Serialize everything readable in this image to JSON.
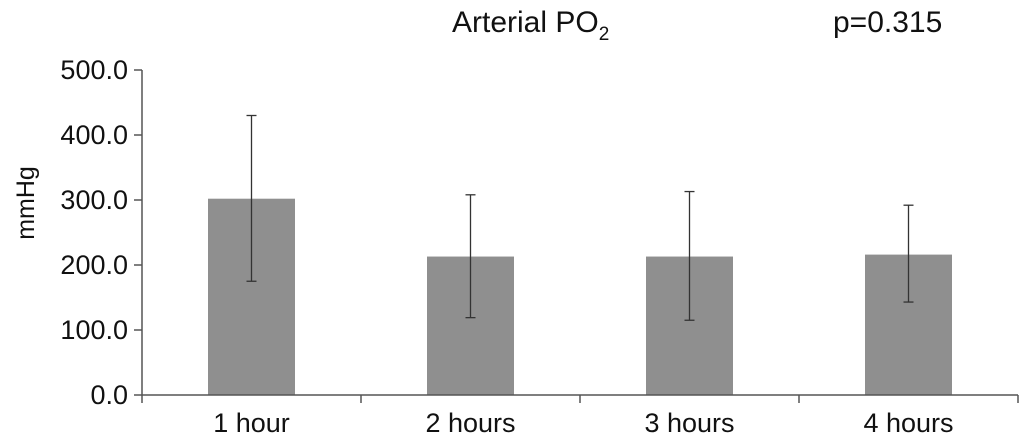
{
  "chart_data": {
    "type": "bar",
    "title": "Arterial PO",
    "title_subscript": "2",
    "annotation": "p=0.315",
    "xlabel": "",
    "ylabel": "mmHg",
    "categories": [
      "1 hour",
      "2 hours",
      "3 hours",
      "4 hours"
    ],
    "values": [
      302,
      213,
      213,
      216
    ],
    "error_plus": [
      128,
      95,
      100,
      76
    ],
    "error_minus": [
      127,
      94,
      98,
      73
    ],
    "ylim": [
      0,
      500
    ],
    "yticks": [
      0,
      100,
      200,
      300,
      400,
      500
    ],
    "ytick_labels": [
      "0.0",
      "100.0",
      "200.0",
      "300.0",
      "400.0",
      "500.0"
    ],
    "grid": false,
    "legend": "none",
    "bar_color": "#8f8f8f"
  }
}
